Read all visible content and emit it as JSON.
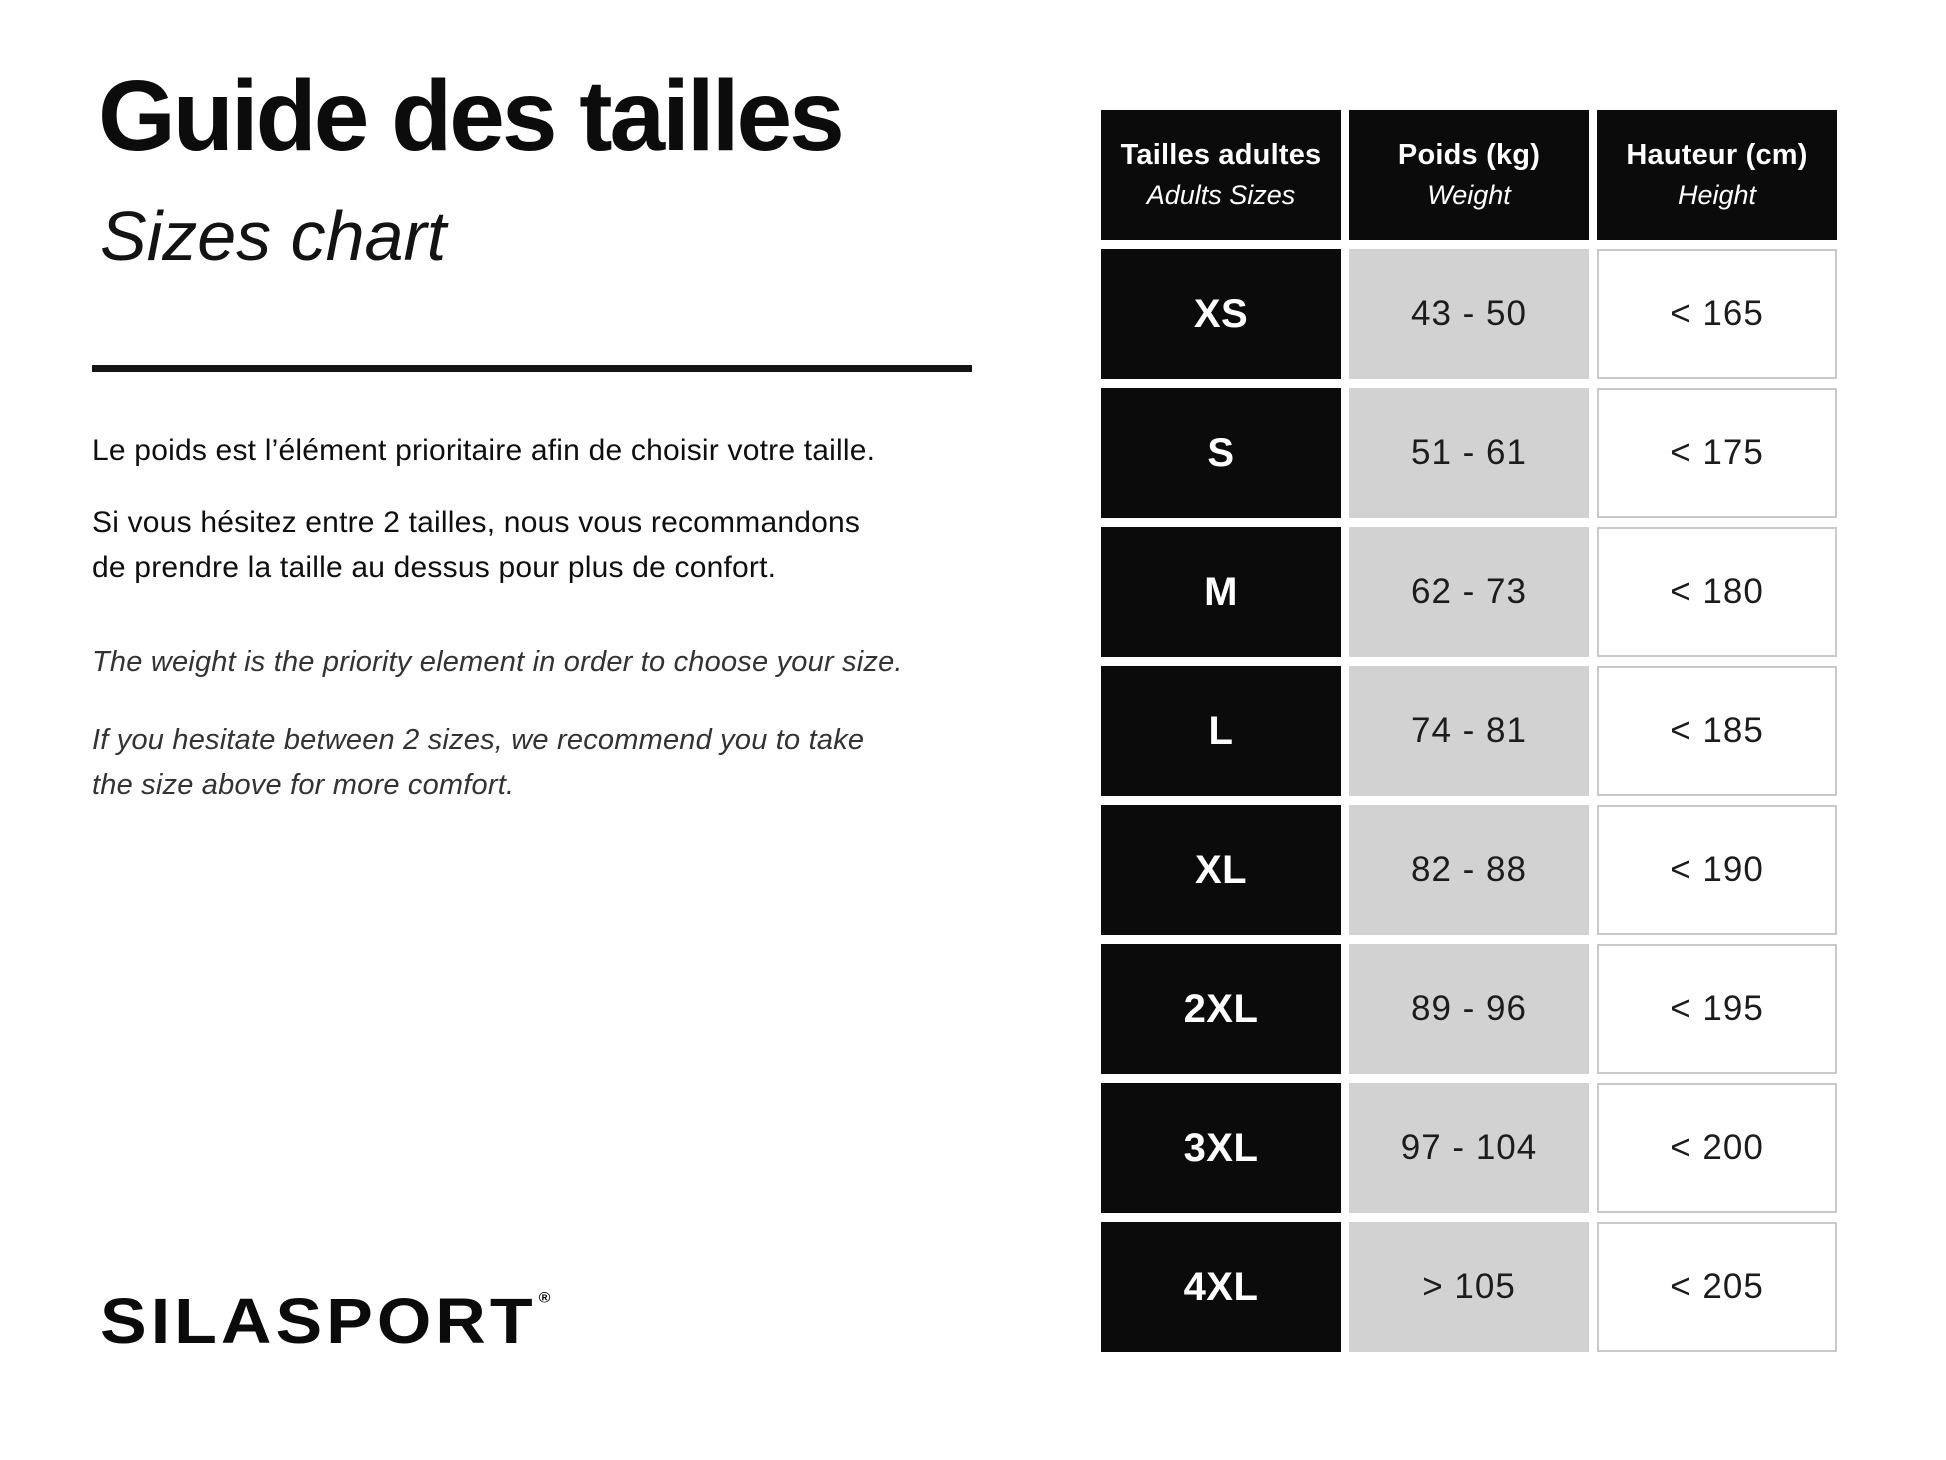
{
  "header": {
    "title_fr": "Guide des tailles",
    "title_en": "Sizes chart"
  },
  "intro": {
    "fr_weight": "Le poids est l’élément prioritaire afin de choisir votre taille.",
    "fr_hesitate": "Si vous hésitez entre 2 tailles, nous vous recommandons\nde prendre la taille au dessus pour plus de confort.",
    "en_weight": "The weight is the priority element in order to choose your size.",
    "en_hesitate": "If you hesitate between 2 sizes, we recommend you to take\nthe size above for more comfort."
  },
  "logo": {
    "text": "SILASPORT",
    "registered": "®"
  },
  "colors": {
    "cell_black": "#0b0b0b",
    "cell_gray": "#d2d2d2",
    "cell_border_gray": "#c9c9c9",
    "text_black": "#111111"
  },
  "size_table": {
    "columns": [
      {
        "fr": "Tailles adultes",
        "en": "Adults Sizes"
      },
      {
        "fr": "Poids (kg)",
        "en": "Weight"
      },
      {
        "fr": "Hauteur (cm)",
        "en": "Height"
      }
    ],
    "rows": [
      {
        "size": "XS",
        "weight": "43 - 50",
        "height": "< 165"
      },
      {
        "size": "S",
        "weight": "51 - 61",
        "height": "< 175"
      },
      {
        "size": "M",
        "weight": "62 - 73",
        "height": "< 180"
      },
      {
        "size": "L",
        "weight": "74 - 81",
        "height": "< 185"
      },
      {
        "size": "XL",
        "weight": "82 - 88",
        "height": "< 190"
      },
      {
        "size": "2XL",
        "weight": "89 - 96",
        "height": "< 195"
      },
      {
        "size": "3XL",
        "weight": "97 - 104",
        "height": "< 200"
      },
      {
        "size": "4XL",
        "weight": "> 105",
        "height": "< 205"
      }
    ]
  },
  "chart_data": {
    "type": "table",
    "title": "Guide des tailles / Sizes chart",
    "columns": [
      "Tailles adultes / Adults Sizes",
      "Poids (kg) / Weight",
      "Hauteur (cm) / Height"
    ],
    "rows": [
      [
        "XS",
        "43 - 50",
        "< 165"
      ],
      [
        "S",
        "51 - 61",
        "< 175"
      ],
      [
        "M",
        "62 - 73",
        "< 180"
      ],
      [
        "L",
        "74 - 81",
        "< 185"
      ],
      [
        "XL",
        "82 - 88",
        "< 190"
      ],
      [
        "2XL",
        "89 - 96",
        "< 195"
      ],
      [
        "3XL",
        "97 - 104",
        "< 200"
      ],
      [
        "4XL",
        "> 105",
        "< 205"
      ]
    ]
  }
}
